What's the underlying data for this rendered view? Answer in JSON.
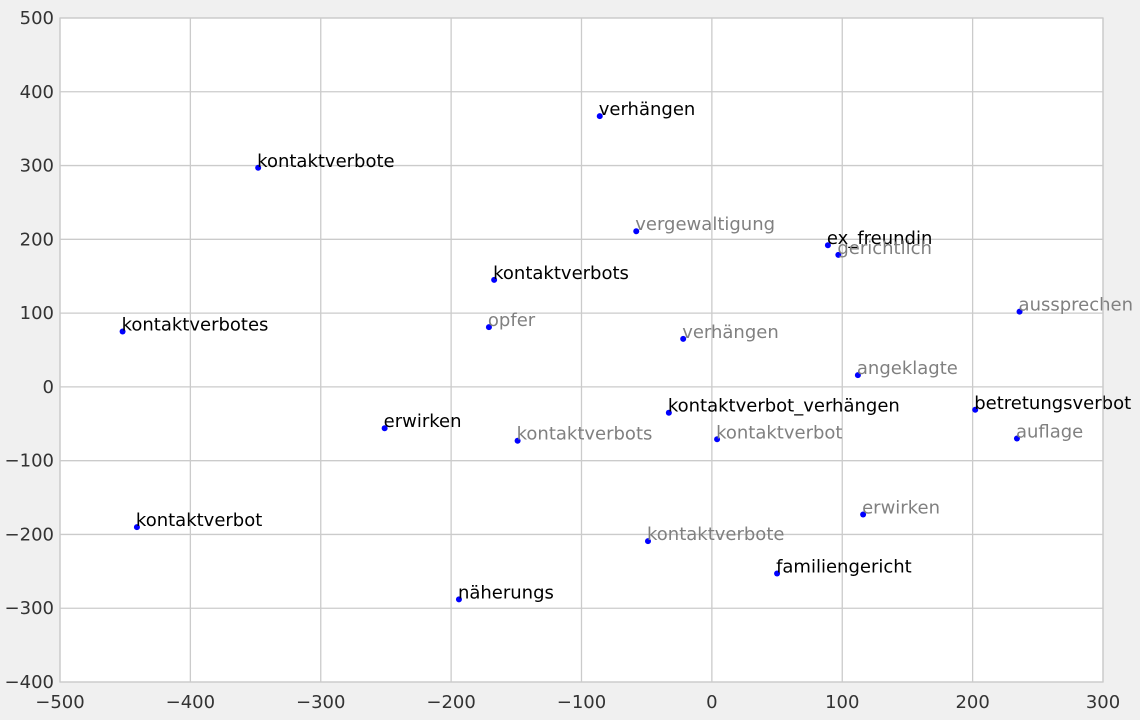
{
  "chart_data": {
    "type": "scatter",
    "title": "",
    "xlabel": "",
    "ylabel": "",
    "xlim": [
      -500,
      300
    ],
    "ylim": [
      -400,
      500
    ],
    "xticks": [
      -500,
      -400,
      -300,
      -200,
      -100,
      0,
      100,
      200,
      300
    ],
    "yticks": [
      -400,
      -300,
      -200,
      -100,
      0,
      100,
      200,
      300,
      400,
      500
    ],
    "grid": true,
    "colors": {
      "point": "#0000ff",
      "primary_label": "#000000",
      "secondary_label": "#808080",
      "grid": "#cbcbcb",
      "plot_background": "#ffffff",
      "figure_background": "#f0f0f0"
    },
    "series": [
      {
        "label_color": "#000000",
        "points": [
          {
            "x": -86,
            "y": 367,
            "label": "verhängen"
          },
          {
            "x": -348,
            "y": 297,
            "label": "kontaktverbote"
          },
          {
            "x": 89,
            "y": 192,
            "label": "ex_freundin"
          },
          {
            "x": -167,
            "y": 145,
            "label": "kontaktverbots"
          },
          {
            "x": -452,
            "y": 75,
            "label": "kontaktverbotes"
          },
          {
            "x": -33,
            "y": -35,
            "label": "kontaktverbot_verhängen"
          },
          {
            "x": 202,
            "y": -31,
            "label": "betretungsverbot"
          },
          {
            "x": -251,
            "y": -56,
            "label": "erwirken"
          },
          {
            "x": -441,
            "y": -190,
            "label": "kontaktverbot"
          },
          {
            "x": 50,
            "y": -253,
            "label": "familiengericht"
          },
          {
            "x": -194,
            "y": -288,
            "label": "näherungs"
          }
        ]
      },
      {
        "label_color": "#808080",
        "points": [
          {
            "x": -58,
            "y": 211,
            "label": "vergewaltigung"
          },
          {
            "x": 97,
            "y": 179,
            "label": "gerichtlich"
          },
          {
            "x": 236,
            "y": 102,
            "label": "aussprechen"
          },
          {
            "x": -171,
            "y": 81,
            "label": "opfer"
          },
          {
            "x": -22,
            "y": 65,
            "label": "verhängen"
          },
          {
            "x": 112,
            "y": 16,
            "label": "angeklagte"
          },
          {
            "x": -149,
            "y": -73,
            "label": "kontaktverbots"
          },
          {
            "x": 4,
            "y": -71,
            "label": "kontaktverbot"
          },
          {
            "x": 234,
            "y": -70,
            "label": "auflage"
          },
          {
            "x": 116,
            "y": -173,
            "label": "erwirken"
          },
          {
            "x": -49,
            "y": -209,
            "label": "kontaktverbote"
          }
        ]
      }
    ]
  }
}
